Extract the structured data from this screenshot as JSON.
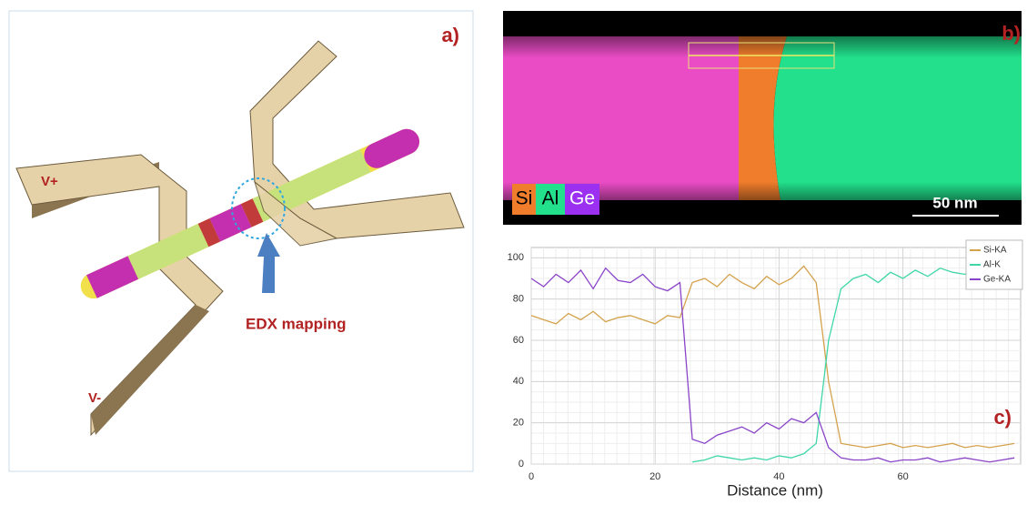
{
  "panel_a": {
    "label": "a)",
    "v_plus": "V+",
    "v_minus": "V-",
    "annotation": "EDX mapping"
  },
  "panel_b": {
    "label": "b)",
    "legend": [
      "Si",
      "Al",
      "Ge"
    ],
    "scale_bar": "50 nm"
  },
  "chart_data": {
    "type": "line",
    "label": "c)",
    "x_label": "Distance (nm)",
    "x": [
      0,
      2,
      4,
      6,
      8,
      10,
      12,
      14,
      16,
      18,
      20,
      22,
      24,
      26,
      28,
      30,
      32,
      34,
      36,
      38,
      40,
      42,
      44,
      46,
      48,
      50,
      52,
      54,
      56,
      58,
      60,
      62,
      64,
      66,
      68,
      70,
      72,
      74,
      76,
      78
    ],
    "series": [
      {
        "name": "Si-KA",
        "color": "#d4a24c",
        "values": [
          72,
          70,
          68,
          73,
          70,
          74,
          69,
          71,
          72,
          70,
          68,
          72,
          71,
          88,
          90,
          86,
          92,
          88,
          85,
          91,
          87,
          90,
          96,
          88,
          40,
          10,
          9,
          8,
          9,
          10,
          8,
          9,
          8,
          9,
          10,
          8,
          9,
          8,
          9,
          10
        ]
      },
      {
        "name": "Al-K",
        "color": "#3fd6a8",
        "values": [
          null,
          null,
          null,
          null,
          null,
          null,
          null,
          null,
          null,
          null,
          null,
          null,
          null,
          1,
          2,
          4,
          3,
          2,
          3,
          2,
          4,
          3,
          5,
          10,
          60,
          85,
          90,
          92,
          88,
          93,
          90,
          94,
          91,
          95,
          93,
          92,
          96,
          94,
          93,
          95
        ]
      },
      {
        "name": "Ge-KA",
        "color": "#8a44c8",
        "values": [
          90,
          86,
          92,
          88,
          94,
          85,
          95,
          89,
          88,
          92,
          86,
          84,
          88,
          12,
          10,
          14,
          16,
          18,
          15,
          20,
          17,
          22,
          20,
          25,
          8,
          3,
          2,
          2,
          3,
          1,
          2,
          2,
          3,
          1,
          2,
          3,
          2,
          1,
          2,
          3
        ]
      }
    ],
    "xlim": [
      0,
      79
    ],
    "xticks": [
      0,
      20,
      40,
      60
    ],
    "ylim": [
      0,
      105
    ],
    "yticks": [
      0,
      20,
      40,
      60,
      80,
      100
    ],
    "grid": true,
    "legend": "upper right"
  }
}
